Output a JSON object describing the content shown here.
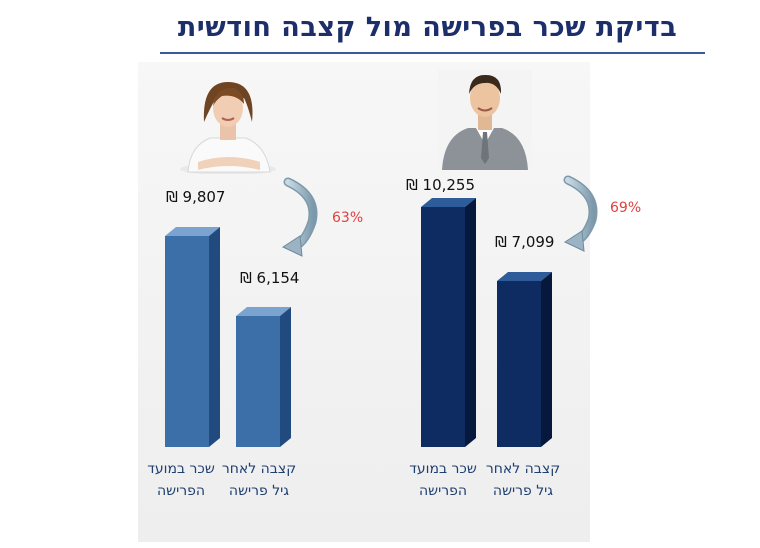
{
  "title": "בדיקת שכר בפרישה מול קצבה חודשית",
  "chart_data": {
    "type": "bar",
    "groups": [
      {
        "person": "female",
        "color": "#3c6ea8",
        "categories": [
          "שכר במועד הפרישה",
          "קצבה לאחר גיל פרישה"
        ],
        "values": [
          9807,
          6154
        ],
        "value_labels": [
          "₪ 9,807",
          "₪ 6,154"
        ],
        "ratio_label": "63%"
      },
      {
        "person": "male",
        "color": "#0e2c62",
        "categories": [
          "שכר במועד הפרישה",
          "קצבה לאחר גיל פרישה"
        ],
        "values": [
          10255,
          7099
        ],
        "value_labels": [
          "₪ 10,255",
          "₪ 7,099"
        ],
        "ratio_label": "69%"
      }
    ]
  }
}
